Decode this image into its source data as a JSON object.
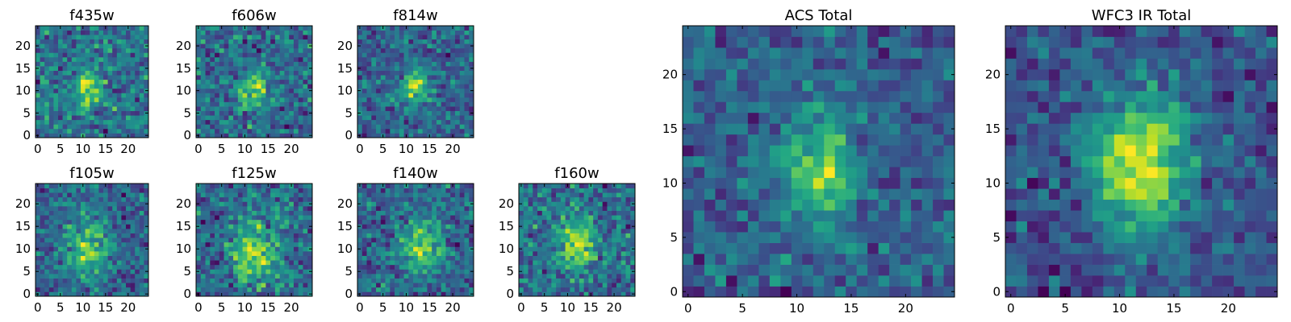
{
  "chart_data": [
    {
      "type": "heatmap",
      "title": "f435w",
      "colormap": "viridis",
      "grid_size": [
        25,
        25
      ],
      "xlim": [
        -0.5,
        24.5
      ],
      "ylim": [
        -0.5,
        24.5
      ],
      "xticks": [
        0,
        5,
        10,
        15,
        20
      ],
      "yticks": [
        0,
        5,
        10,
        15,
        20
      ],
      "peak": [
        11,
        11
      ],
      "seed": 11,
      "sigma": 2.0,
      "amp": 0.55,
      "noise": 0.55
    },
    {
      "type": "heatmap",
      "title": "f606w",
      "colormap": "viridis",
      "grid_size": [
        25,
        25
      ],
      "xlim": [
        -0.5,
        24.5
      ],
      "ylim": [
        -0.5,
        24.5
      ],
      "xticks": [
        0,
        5,
        10,
        15,
        20
      ],
      "yticks": [
        0,
        5,
        10,
        15,
        20
      ],
      "peak": [
        12,
        10
      ],
      "seed": 23,
      "sigma": 2.0,
      "amp": 0.55,
      "noise": 0.55
    },
    {
      "type": "heatmap",
      "title": "f814w",
      "colormap": "viridis",
      "grid_size": [
        25,
        25
      ],
      "xlim": [
        -0.5,
        24.5
      ],
      "ylim": [
        -0.5,
        24.5
      ],
      "xticks": [
        0,
        5,
        10,
        15,
        20
      ],
      "yticks": [
        0,
        5,
        10,
        15,
        20
      ],
      "peak": [
        12,
        11
      ],
      "seed": 37,
      "sigma": 2.0,
      "amp": 0.6,
      "noise": 0.5
    },
    {
      "type": "heatmap",
      "title": "f105w",
      "colormap": "viridis",
      "grid_size": [
        25,
        25
      ],
      "xlim": [
        -0.5,
        24.5
      ],
      "ylim": [
        -0.5,
        24.5
      ],
      "xticks": [
        0,
        5,
        10,
        15,
        20
      ],
      "yticks": [
        0,
        5,
        10,
        15,
        20
      ],
      "peak": [
        11,
        10
      ],
      "seed": 41,
      "sigma": 3.2,
      "amp": 0.55,
      "noise": 0.5
    },
    {
      "type": "heatmap",
      "title": "f125w",
      "colormap": "viridis",
      "grid_size": [
        25,
        25
      ],
      "xlim": [
        -0.5,
        24.5
      ],
      "ylim": [
        -0.5,
        24.5
      ],
      "xticks": [
        0,
        5,
        10,
        15,
        20
      ],
      "yticks": [
        0,
        5,
        10,
        15,
        20
      ],
      "peak": [
        12,
        9
      ],
      "seed": 53,
      "sigma": 3.2,
      "amp": 0.55,
      "noise": 0.5
    },
    {
      "type": "heatmap",
      "title": "f140w",
      "colormap": "viridis",
      "grid_size": [
        25,
        25
      ],
      "xlim": [
        -0.5,
        24.5
      ],
      "ylim": [
        -0.5,
        24.5
      ],
      "xticks": [
        0,
        5,
        10,
        15,
        20
      ],
      "yticks": [
        0,
        5,
        10,
        15,
        20
      ],
      "peak": [
        13,
        11
      ],
      "seed": 67,
      "sigma": 3.0,
      "amp": 0.55,
      "noise": 0.5
    },
    {
      "type": "heatmap",
      "title": "f160w",
      "colormap": "viridis",
      "grid_size": [
        25,
        25
      ],
      "xlim": [
        -0.5,
        24.5
      ],
      "ylim": [
        -0.5,
        24.5
      ],
      "xticks": [
        0,
        5,
        10,
        15,
        20
      ],
      "yticks": [
        0,
        5,
        10,
        15,
        20
      ],
      "peak": [
        12,
        11
      ],
      "seed": 79,
      "sigma": 2.6,
      "amp": 0.6,
      "noise": 0.55
    },
    {
      "type": "heatmap",
      "title": "ACS Total",
      "colormap": "viridis",
      "grid_size": [
        25,
        25
      ],
      "xlim": [
        -0.5,
        24.5
      ],
      "ylim": [
        -0.5,
        24.5
      ],
      "xticks": [
        0,
        5,
        10,
        15,
        20
      ],
      "yticks": [
        0,
        5,
        10,
        15,
        20
      ],
      "peak": [
        12,
        11
      ],
      "seed": 97,
      "sigma": 2.2,
      "amp": 0.6,
      "noise": 0.4
    },
    {
      "type": "heatmap",
      "title": "WFC3 IR Total",
      "colormap": "viridis",
      "grid_size": [
        25,
        25
      ],
      "xlim": [
        -0.5,
        24.5
      ],
      "ylim": [
        -0.5,
        24.5
      ],
      "xticks": [
        0,
        5,
        10,
        15,
        20
      ],
      "yticks": [
        0,
        5,
        10,
        15,
        20
      ],
      "peak": [
        12,
        12
      ],
      "seed": 113,
      "sigma": 3.0,
      "amp": 0.65,
      "noise": 0.3
    }
  ]
}
